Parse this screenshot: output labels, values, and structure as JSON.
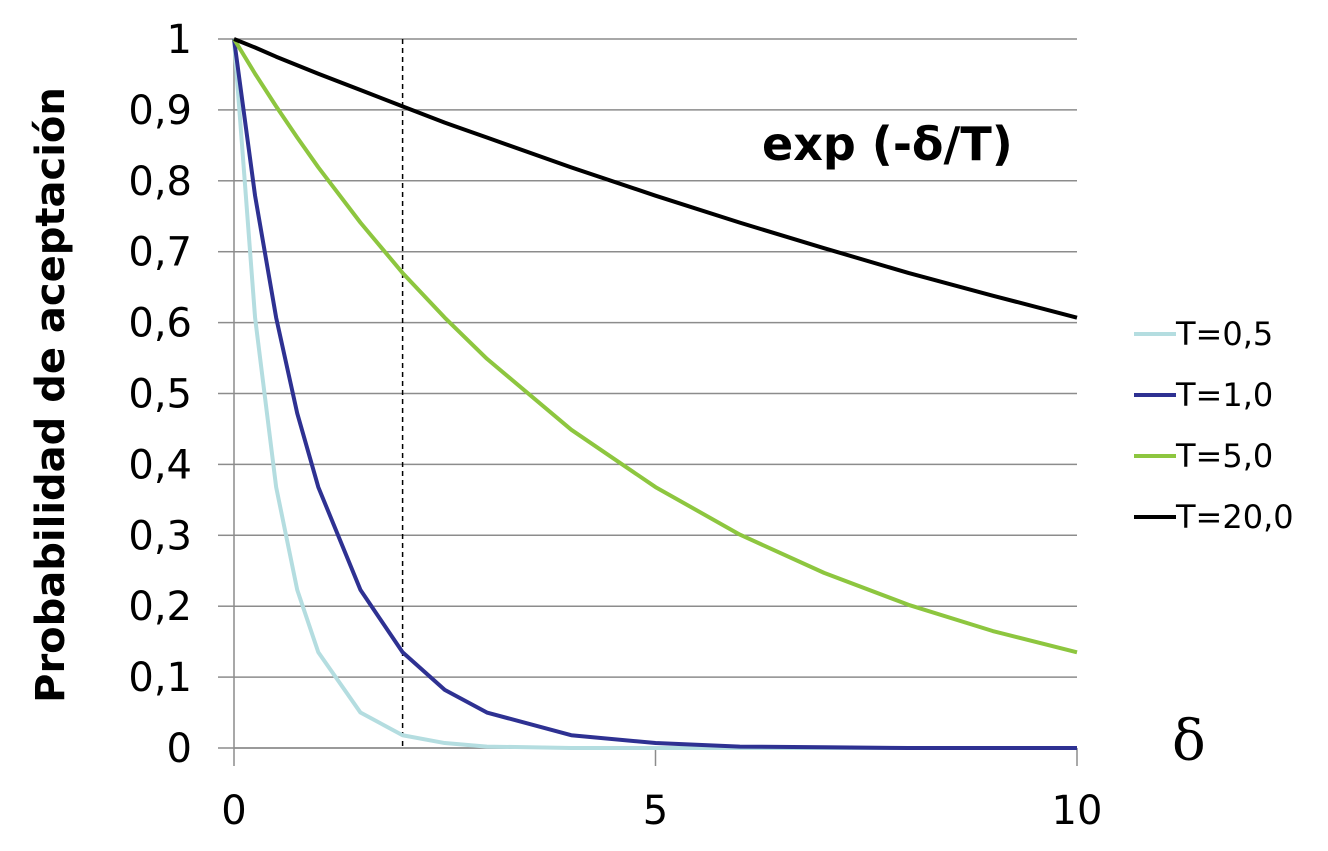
{
  "chart_data": {
    "type": "line",
    "title": "",
    "annotation": "exp (-δ/T)",
    "xlabel": "δ",
    "ylabel": "Probabilidad de aceptación",
    "xlim": [
      0,
      10
    ],
    "ylim": [
      0,
      1
    ],
    "x_ticks": [
      "0",
      "5",
      "10"
    ],
    "y_ticks": [
      "0",
      "0,1",
      "0,2",
      "0,3",
      "0,4",
      "0,5",
      "0,6",
      "0,7",
      "0,8",
      "0,9",
      "1"
    ],
    "grid": "horizontal",
    "legend_position": "right",
    "reference_line_x": 2,
    "x": [
      0,
      0.25,
      0.5,
      0.75,
      1,
      1.5,
      2,
      2.5,
      3,
      4,
      5,
      6,
      7,
      8,
      9,
      10
    ],
    "series": [
      {
        "name": "T=0,5",
        "color": "#b4dde0",
        "values": [
          1,
          0.607,
          0.368,
          0.223,
          0.135,
          0.05,
          0.018,
          0.007,
          0.002,
          0,
          0,
          0,
          0,
          0,
          0,
          0
        ]
      },
      {
        "name": "T=1,0",
        "color": "#2e3192",
        "values": [
          1,
          0.779,
          0.607,
          0.472,
          0.368,
          0.223,
          0.135,
          0.082,
          0.05,
          0.018,
          0.007,
          0.002,
          0.001,
          0,
          0,
          0
        ]
      },
      {
        "name": "T=5,0",
        "color": "#8dc63f",
        "values": [
          1,
          0.951,
          0.905,
          0.861,
          0.819,
          0.741,
          0.67,
          0.607,
          0.549,
          0.449,
          0.368,
          0.301,
          0.247,
          0.202,
          0.165,
          0.135
        ]
      },
      {
        "name": "T=20,0",
        "color": "#000000",
        "values": [
          1,
          0.988,
          0.975,
          0.963,
          0.951,
          0.928,
          0.905,
          0.882,
          0.861,
          0.819,
          0.779,
          0.741,
          0.705,
          0.67,
          0.638,
          0.607
        ]
      }
    ]
  }
}
